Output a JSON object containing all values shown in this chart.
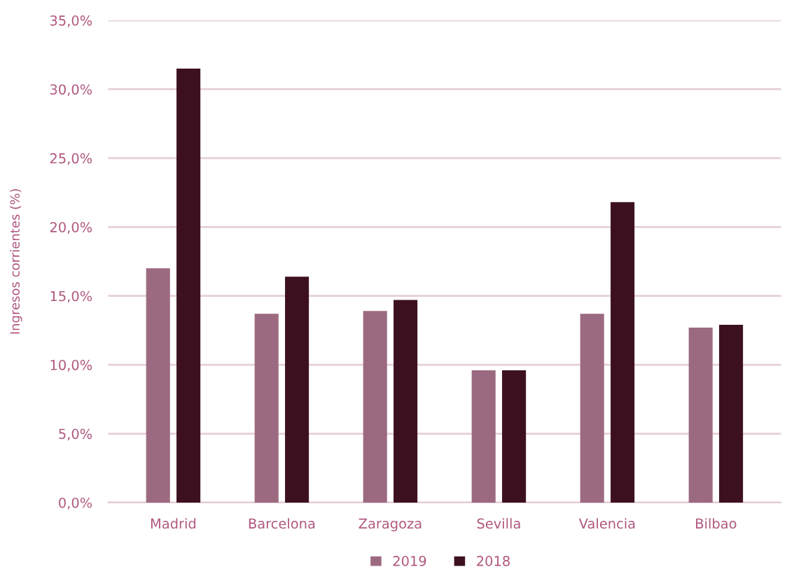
{
  "chart_data": {
    "type": "bar",
    "ylabel": "Ingresos corrientes (%)",
    "categories": [
      "Madrid",
      "Barcelona",
      "Zaragoza",
      "Sevilla",
      "Valencia",
      "Bilbao"
    ],
    "series": [
      {
        "name": "2019",
        "color": "#9c6a80",
        "values": [
          17.0,
          13.7,
          13.9,
          9.6,
          13.7,
          12.7
        ]
      },
      {
        "name": "2018",
        "color": "#3d1020",
        "values": [
          31.5,
          16.4,
          14.7,
          9.6,
          21.8,
          12.9
        ]
      }
    ],
    "ylim": [
      0,
      35
    ],
    "yticks": [
      {
        "value": 0,
        "label": "0,0%"
      },
      {
        "value": 5,
        "label": "5,0%"
      },
      {
        "value": 10,
        "label": "10,0%"
      },
      {
        "value": 15,
        "label": "15,0%"
      },
      {
        "value": 20,
        "label": "20,0%"
      },
      {
        "value": 25,
        "label": "25,0%"
      },
      {
        "value": 30,
        "label": "30,0%"
      },
      {
        "value": 35,
        "label": "35,0%"
      }
    ],
    "grid": "y",
    "legend": "bottom"
  }
}
